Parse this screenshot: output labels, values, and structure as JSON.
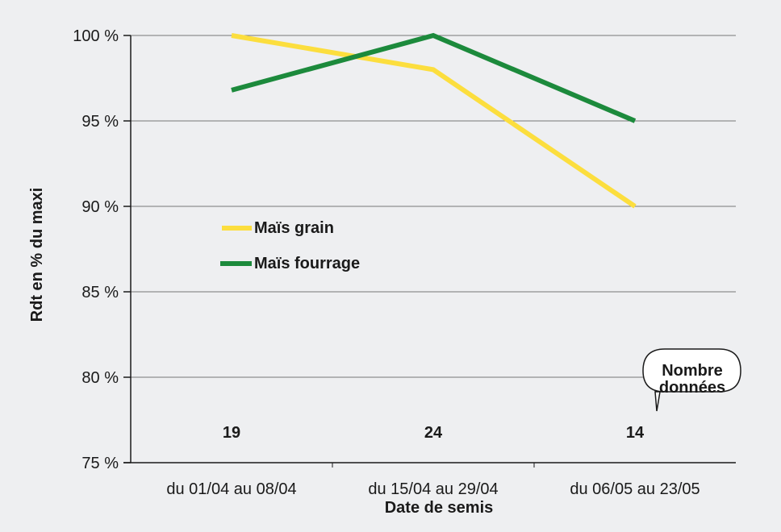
{
  "chart_data": {
    "type": "line",
    "categories": [
      "du 01/04 au 08/04",
      "du 15/04 au 29/04",
      "du 06/05 au 23/05"
    ],
    "series": [
      {
        "name": "Maïs grain",
        "values": [
          100,
          98,
          90
        ],
        "color": "#fcde3e"
      },
      {
        "name": "Maïs fourrage",
        "values": [
          96.8,
          100,
          95
        ],
        "color": "#1c8a3c"
      }
    ],
    "yticks": [
      "75 %",
      "80 %",
      "85 %",
      "90 %",
      "95 %",
      "100 %"
    ],
    "ylim": [
      75,
      100
    ],
    "xlabel": "Date de semis",
    "ylabel": "Rdt en % du maxi",
    "counts": [
      "19",
      "24",
      "14"
    ],
    "callout": [
      "Nombre",
      "données"
    ],
    "grid": "horizontal"
  }
}
